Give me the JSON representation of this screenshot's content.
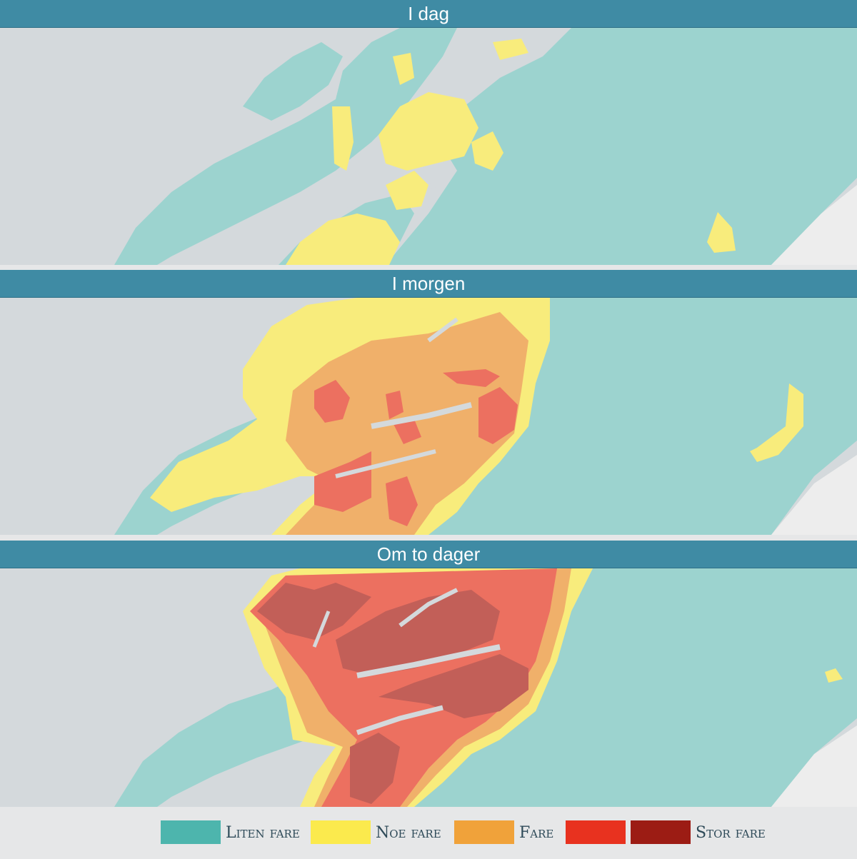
{
  "panels": [
    {
      "title": "I dag",
      "level": "low-moderate"
    },
    {
      "title": "I morgen",
      "level": "moderate-considerable"
    },
    {
      "title": "Om to dager",
      "level": "considerable-high"
    }
  ],
  "legend": {
    "items": [
      {
        "label": "Liten fare",
        "color": "#4db5ad"
      },
      {
        "label": "Noe fare",
        "color": "#fbea4d"
      },
      {
        "label": "Fare",
        "color": "#f0a23a"
      },
      {
        "color": "#e8321f"
      },
      {
        "label": "Stor fare",
        "color": "#9c1c14"
      }
    ]
  },
  "colors": {
    "header_bg": "#3f8ba4",
    "sea": "#d4d9dc",
    "low": "#9cd3cf",
    "moderate": "#f8ec7c",
    "considerable": "#f0b06a",
    "high": "#ec7060",
    "very_high": "#c25f58"
  }
}
